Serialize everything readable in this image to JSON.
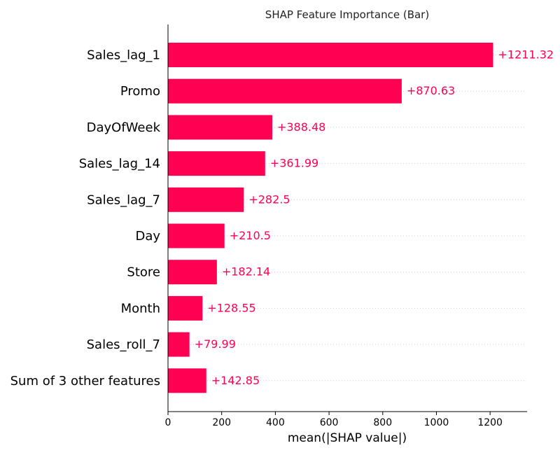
{
  "chart_data": {
    "type": "bar",
    "orientation": "horizontal",
    "title": "SHAP Feature Importance (Bar)",
    "xlabel": "mean(|SHAP value|)",
    "ylabel": "",
    "xlim": [
      0,
      1330
    ],
    "xticks": [
      0,
      200,
      400,
      600,
      800,
      1000,
      1200
    ],
    "xtick_labels": [
      "0",
      "200",
      "400",
      "600",
      "800",
      "1000",
      "1200"
    ],
    "categories": [
      "Sales_lag_1",
      "Promo",
      "DayOfWeek",
      "Sales_lag_14",
      "Sales_lag_7",
      "Day",
      "Store",
      "Month",
      "Sales_roll_7",
      "Sum of 3 other features"
    ],
    "values": [
      1211.32,
      870.63,
      388.48,
      361.99,
      282.5,
      210.5,
      182.14,
      128.55,
      79.99,
      142.85
    ],
    "value_labels": [
      "+1211.32",
      "+870.63",
      "+388.48",
      "+361.99",
      "+282.5",
      "+210.5",
      "+182.14",
      "+128.55",
      "+79.99",
      "+142.85"
    ],
    "bar_color": "#ff0052",
    "grid": "dotted horizontal guide per bar"
  }
}
